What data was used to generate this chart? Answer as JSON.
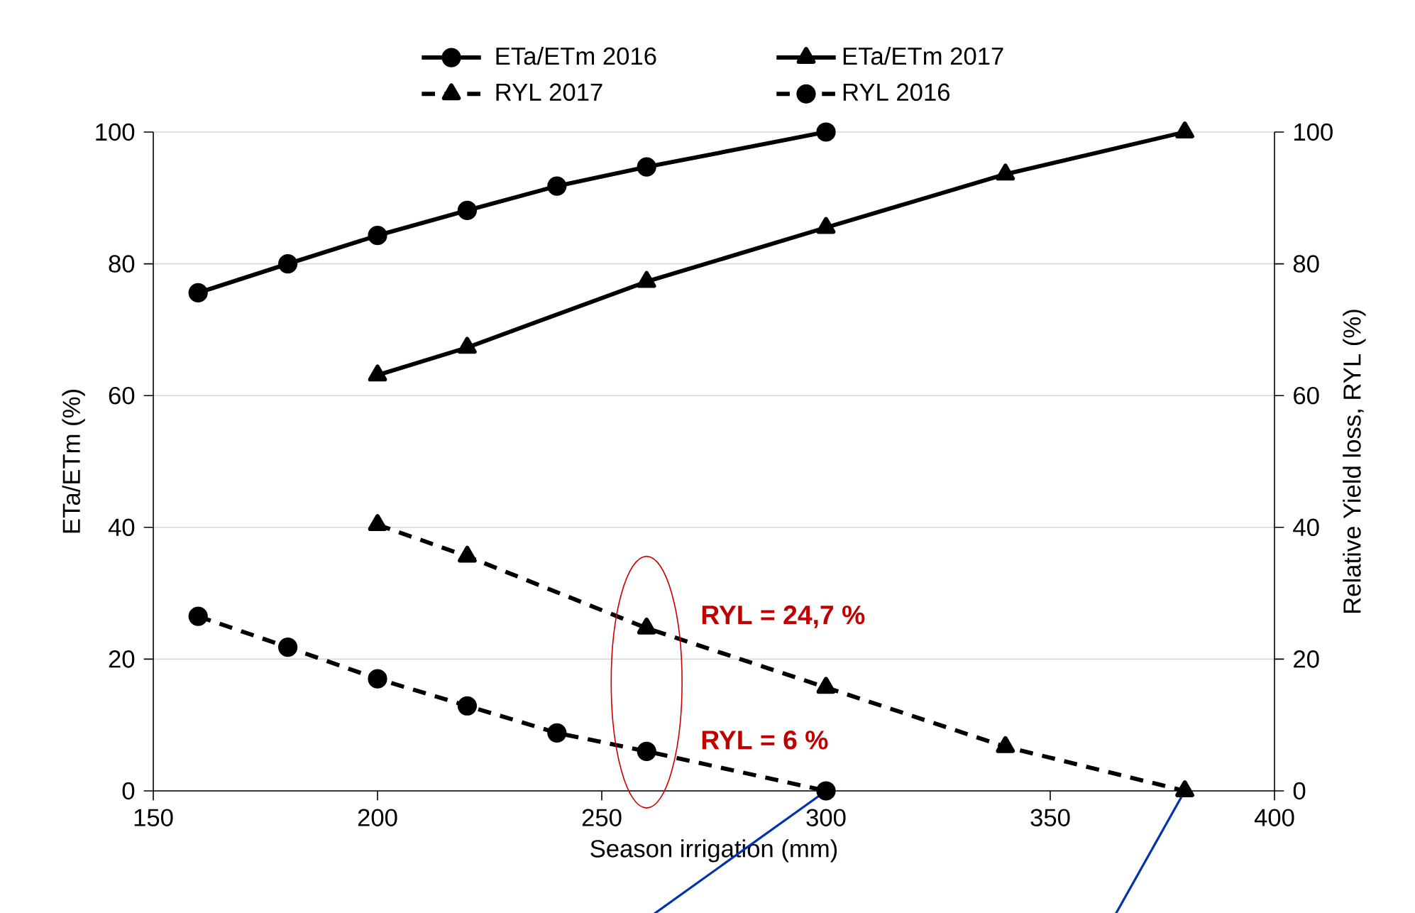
{
  "chart_data": {
    "type": "line",
    "xlabel": "Season irrigation (mm)",
    "ylabel": "ETa/ETm (%)",
    "y2label": "Relative Yield loss, RYL (%)",
    "xlim": [
      150,
      400
    ],
    "xticks": [
      150,
      200,
      250,
      300,
      350,
      400
    ],
    "ylim": [
      0,
      100
    ],
    "yticks": [
      0,
      20,
      40,
      60,
      80,
      100
    ],
    "y2lim": [
      0,
      100
    ],
    "y2ticks": [
      0,
      20,
      40,
      60,
      80,
      100
    ],
    "grid": "y",
    "legend": "top",
    "series": [
      {
        "name": "ETa/ETm 2016",
        "color": "#000000",
        "marker": "circle",
        "line_style": "solid",
        "x": [
          160,
          180,
          200,
          220,
          240,
          260,
          300
        ],
        "values": [
          75.6,
          80,
          84.3,
          88.1,
          91.8,
          94.7,
          100
        ]
      },
      {
        "name": "ETa/ETm 2017",
        "color": "#000000",
        "marker": "triangle",
        "line_style": "solid",
        "x": [
          200,
          220,
          260,
          300,
          340,
          380
        ],
        "values": [
          63.1,
          67.3,
          77.3,
          85.5,
          93.6,
          100
        ]
      },
      {
        "name": "RYL 2017",
        "color": "#000000",
        "marker": "triangle",
        "line_style": "dashed",
        "axis": "y2",
        "x": [
          200,
          220,
          260,
          300,
          340,
          380
        ],
        "values": [
          40.4,
          35.6,
          24.7,
          15.7,
          6.7,
          0
        ]
      },
      {
        "name": "RYL 2016",
        "color": "#000000",
        "marker": "circle",
        "line_style": "dashed",
        "axis": "y2",
        "x": [
          160,
          180,
          200,
          220,
          240,
          260,
          300
        ],
        "values": [
          26.5,
          21.8,
          17.0,
          12.9,
          8.8,
          6,
          0
        ]
      }
    ],
    "annotations": [
      {
        "text": "RYL = 24,7 %",
        "x": 260,
        "y": 24.7
      },
      {
        "text": "RYL = 6 %",
        "x": 260,
        "y": 6
      }
    ]
  }
}
